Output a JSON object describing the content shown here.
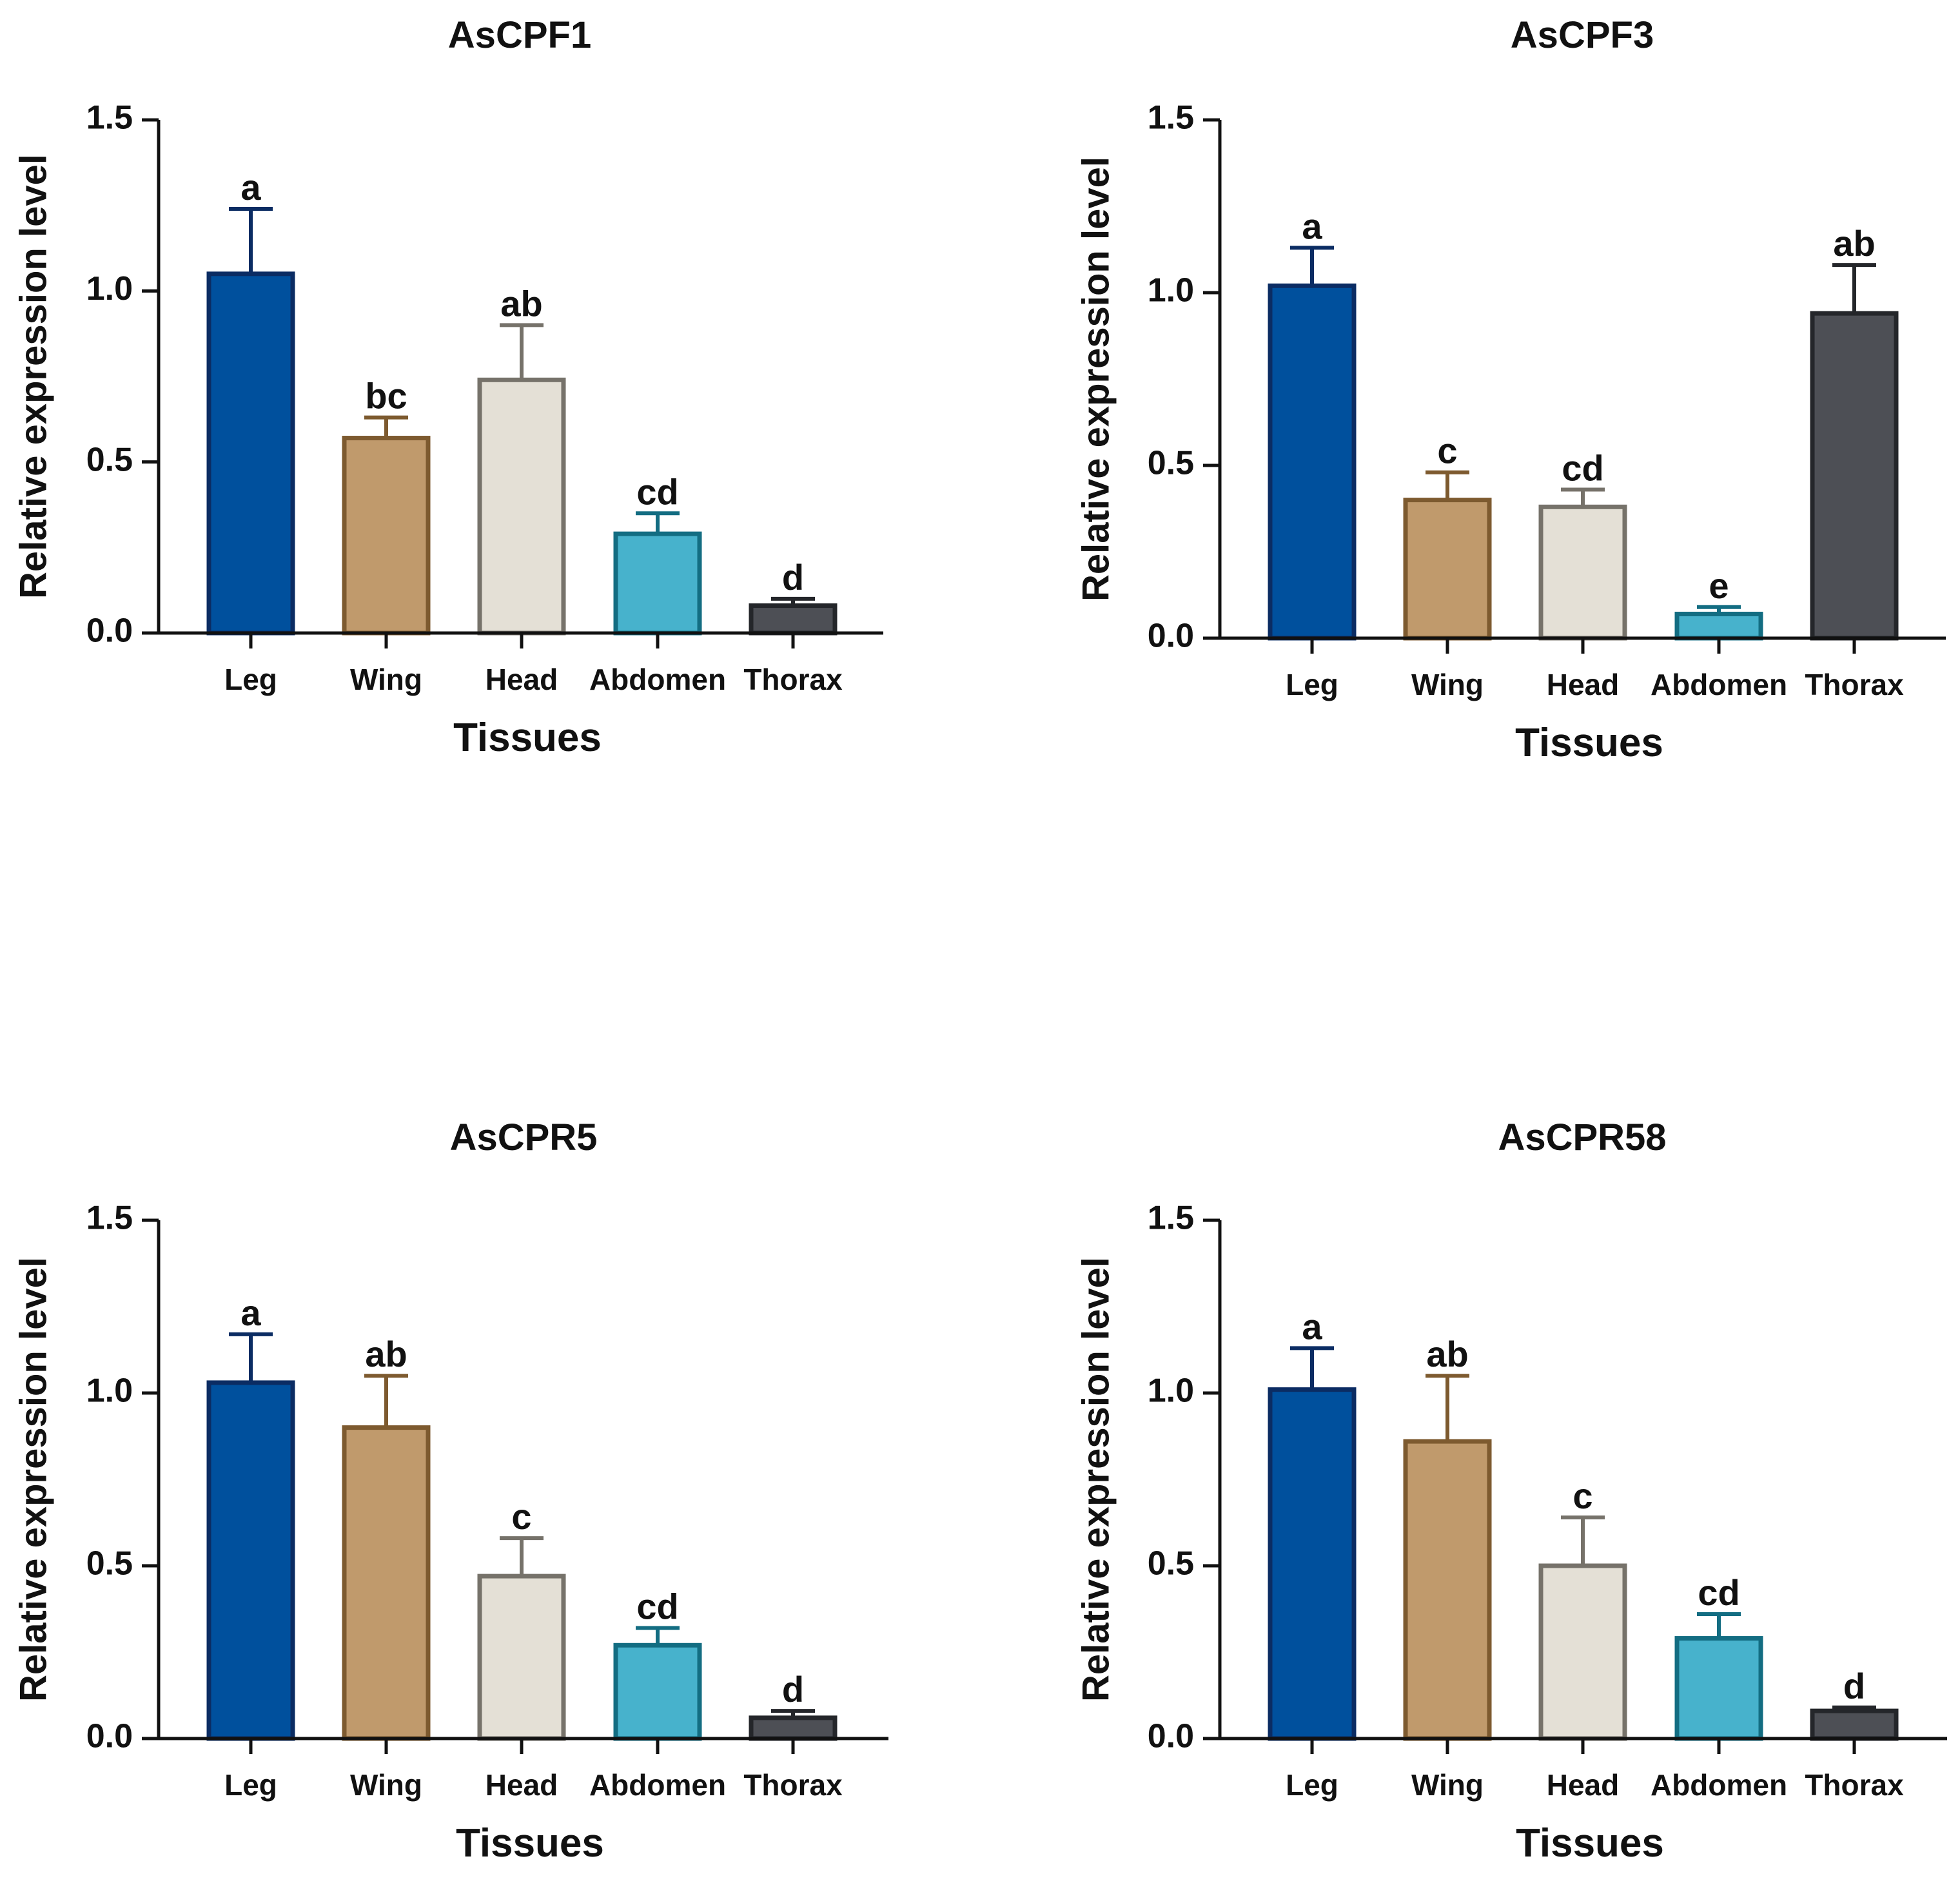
{
  "colors": {
    "axis": "#111111",
    "fills": [
      "#00509d",
      "#c09a6c",
      "#e4e0d6",
      "#47b2cc",
      "#4d4f55"
    ],
    "strokes": [
      "#0b2c63",
      "#7d5a2f",
      "#76726a",
      "#136d82",
      "#24262a"
    ]
  },
  "chart_data": [
    {
      "type": "bar",
      "title": "AsCPF1",
      "xlabel": "Tissues",
      "ylabel": "Relative expression level",
      "ylim": [
        0,
        1.5
      ],
      "yticks": [
        "0.0",
        "0.5",
        "1.0",
        "1.5"
      ],
      "categories": [
        "Leg",
        "Wing",
        "Head",
        "Abdomen",
        "Thorax"
      ],
      "values": [
        1.05,
        0.57,
        0.74,
        0.29,
        0.08
      ],
      "errors": [
        0.19,
        0.06,
        0.16,
        0.06,
        0.02
      ],
      "significance": [
        "a",
        "bc",
        "ab",
        "cd",
        "d"
      ]
    },
    {
      "type": "bar",
      "title": "AsCPF3",
      "xlabel": "Tissues",
      "ylabel": "Relative expression level",
      "ylim": [
        0,
        1.5
      ],
      "yticks": [
        "0.0",
        "0.5",
        "1.0",
        "1.5"
      ],
      "categories": [
        "Leg",
        "Wing",
        "Head",
        "Abdomen",
        "Thorax"
      ],
      "values": [
        1.02,
        0.4,
        0.38,
        0.07,
        0.94
      ],
      "errors": [
        0.11,
        0.08,
        0.05,
        0.02,
        0.14
      ],
      "significance": [
        "a",
        "c",
        "cd",
        "e",
        "ab"
      ]
    },
    {
      "type": "bar",
      "title": "AsCPR5",
      "xlabel": "Tissues",
      "ylabel": "Relative expression level",
      "ylim": [
        0,
        1.5
      ],
      "yticks": [
        "0.0",
        "0.5",
        "1.0",
        "1.5"
      ],
      "categories": [
        "Leg",
        "Wing",
        "Head",
        "Abdomen",
        "Thorax"
      ],
      "values": [
        1.03,
        0.9,
        0.47,
        0.27,
        0.06
      ],
      "errors": [
        0.14,
        0.15,
        0.11,
        0.05,
        0.02
      ],
      "significance": [
        "a",
        "ab",
        "c",
        "cd",
        "d"
      ]
    },
    {
      "type": "bar",
      "title": "AsCPR58",
      "xlabel": "Tissues",
      "ylabel": "Relative expression level",
      "ylim": [
        0,
        1.5
      ],
      "yticks": [
        "0.0",
        "0.5",
        "1.0",
        "1.5"
      ],
      "categories": [
        "Leg",
        "Wing",
        "Head",
        "Abdomen",
        "Thorax"
      ],
      "values": [
        1.01,
        0.86,
        0.5,
        0.29,
        0.08
      ],
      "errors": [
        0.12,
        0.19,
        0.14,
        0.07,
        0.01
      ],
      "significance": [
        "a",
        "ab",
        "c",
        "cd",
        "d"
      ]
    }
  ]
}
